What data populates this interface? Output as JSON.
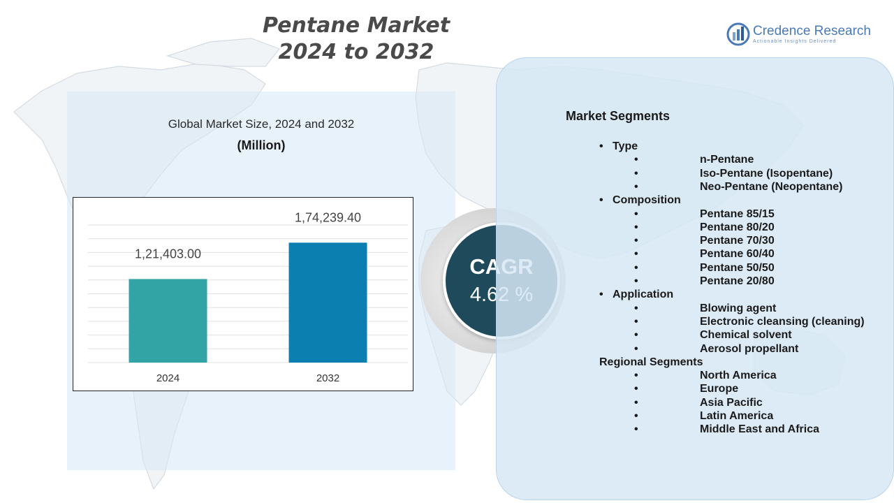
{
  "title": {
    "line1": "Pentane Market",
    "line2": "2024 to 2032"
  },
  "brand": {
    "name": "Credence Research",
    "tagline": "Actionable Insights Delivered",
    "icon": "credence-logo-icon",
    "color": "#4a7ab5"
  },
  "chart_data": {
    "type": "bar",
    "title": "Global Market Size, 2024 and 2032",
    "unit_label": "(Million)",
    "categories": [
      "2024",
      "2032"
    ],
    "values": [
      121403.0,
      174239.4
    ],
    "value_labels": [
      "1,21,403.00",
      "1,74,239.40"
    ],
    "colors": [
      "#33a4a6",
      "#0a7fb0"
    ],
    "grid": true,
    "ylim": [
      0,
      200000
    ]
  },
  "cagr": {
    "label": "CAGR",
    "value": "4.62 %",
    "color": "#1f4a5c"
  },
  "segments": {
    "heading": "Market Segments",
    "groups": [
      {
        "name": "Type",
        "items": [
          "n-Pentane",
          "Iso-Pentane (Isopentane)",
          "Neo-Pentane (Neopentane)"
        ]
      },
      {
        "name": "Composition",
        "items": [
          "Pentane 85/15",
          "Pentane 80/20",
          "Pentane 70/30",
          "Pentane 60/40",
          "Pentane 50/50",
          "Pentane 20/80"
        ]
      },
      {
        "name": "Application",
        "items": [
          "Blowing agent",
          "Electronic cleansing (cleaning)",
          "Chemical solvent",
          "Aerosol propellant"
        ]
      }
    ],
    "regional": {
      "heading": "Regional Segments",
      "items": [
        "North America",
        "Europe",
        "Asia Pacific",
        "Latin America",
        "Middle East and Africa"
      ]
    },
    "bullet": "•"
  }
}
